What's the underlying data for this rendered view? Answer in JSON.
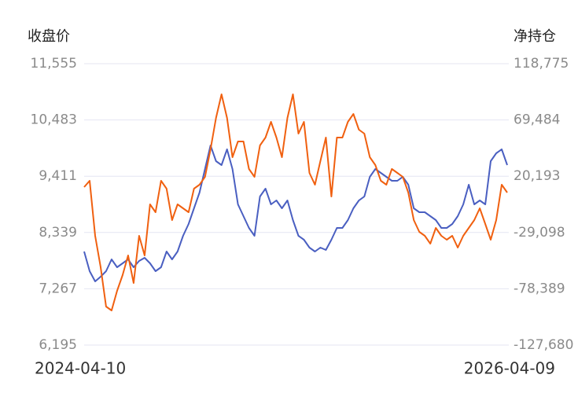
{
  "chart_data": {
    "type": "line",
    "ylabel": "收盘价",
    "y2label": "净持仓",
    "categories": [
      "2024-04-10",
      null,
      null,
      null,
      null,
      null,
      null,
      null,
      null,
      null,
      null,
      null,
      null,
      null,
      null,
      null,
      null,
      null,
      null,
      null,
      null,
      null,
      null,
      null,
      null,
      null,
      null,
      null,
      null,
      null,
      null,
      null,
      null,
      null,
      null,
      null,
      null,
      null,
      null,
      null,
      null,
      null,
      null,
      null,
      null,
      null,
      null,
      null,
      null,
      null,
      null,
      null,
      null,
      null,
      null,
      null,
      null,
      null,
      null,
      null,
      null,
      null,
      null,
      null,
      null,
      null,
      null,
      null,
      null,
      null,
      null,
      null,
      null,
      null,
      null,
      null,
      null,
      "2026-04-09"
    ],
    "ylim": [
      6195,
      11555
    ],
    "yticks": [
      {
        "value": 6195,
        "label": "6,195"
      },
      {
        "value": 7267,
        "label": "7,267"
      },
      {
        "value": 8339,
        "label": "8,339"
      },
      {
        "value": 9411,
        "label": "9,411"
      },
      {
        "value": 10483,
        "label": "10,483"
      },
      {
        "value": 11555,
        "label": "11,555"
      }
    ],
    "y2lim": [
      -127680,
      118775
    ],
    "y2ticks": [
      {
        "value": -127680,
        "label": "-127,680"
      },
      {
        "value": -78389,
        "label": "-78,389"
      },
      {
        "value": -29098,
        "label": "-29,098"
      },
      {
        "value": 20193,
        "label": "20,193"
      },
      {
        "value": 69484,
        "label": "69,484"
      },
      {
        "value": 118775,
        "label": "118,775"
      }
    ],
    "grid": true,
    "series": [
      {
        "color": "#4a5fc1",
        "axis": "y",
        "values": [
          7977,
          7602,
          7408,
          7498,
          7602,
          7827,
          7677,
          7752,
          7827,
          7677,
          7797,
          7857,
          7752,
          7602,
          7677,
          7977,
          7827,
          7977,
          8276,
          8501,
          8800,
          9100,
          9549,
          9998,
          9698,
          9624,
          9923,
          9549,
          8875,
          8650,
          8426,
          8276,
          9025,
          9174,
          8875,
          8950,
          8800,
          8950,
          8576,
          8276,
          8201,
          8052,
          7977,
          8052,
          8007,
          8201,
          8426,
          8426,
          8576,
          8800,
          8950,
          9025,
          9399,
          9549,
          9474,
          9399,
          9324,
          9324,
          9399,
          9249,
          8800,
          8725,
          8725,
          8650,
          8576,
          8426,
          8426,
          8501,
          8650,
          8875,
          9249,
          8875,
          8950,
          8875,
          9698,
          9848,
          9923,
          9624
        ]
      },
      {
        "color": "#f06010",
        "axis": "y2",
        "values": [
          10696,
          16203,
          -31985,
          -59521,
          -93941,
          -97383,
          -80173,
          -66405,
          -49195,
          -73289,
          -31985,
          -49195,
          -4449,
          -11333,
          16203,
          9319,
          -18217,
          -4449,
          -7891,
          -11333,
          9319,
          12761,
          19645,
          43739,
          71275,
          91927,
          71275,
          36855,
          50623,
          50623,
          26529,
          19645,
          47181,
          54065,
          67833,
          54065,
          36855,
          71275,
          91927,
          57507,
          67833,
          23087,
          12761,
          33413,
          54065,
          2435,
          54065,
          54065,
          67833,
          74717,
          60949,
          57507,
          36855,
          29971,
          16203,
          12761,
          26529,
          23087,
          19645,
          5877,
          -18217,
          -28544,
          -31985,
          -38871,
          -25101,
          -31985,
          -35427,
          -31985,
          -42311,
          -31985,
          -25101,
          -18217,
          -7891,
          -21659,
          -35427,
          -18217,
          12761,
          5877
        ]
      }
    ]
  }
}
